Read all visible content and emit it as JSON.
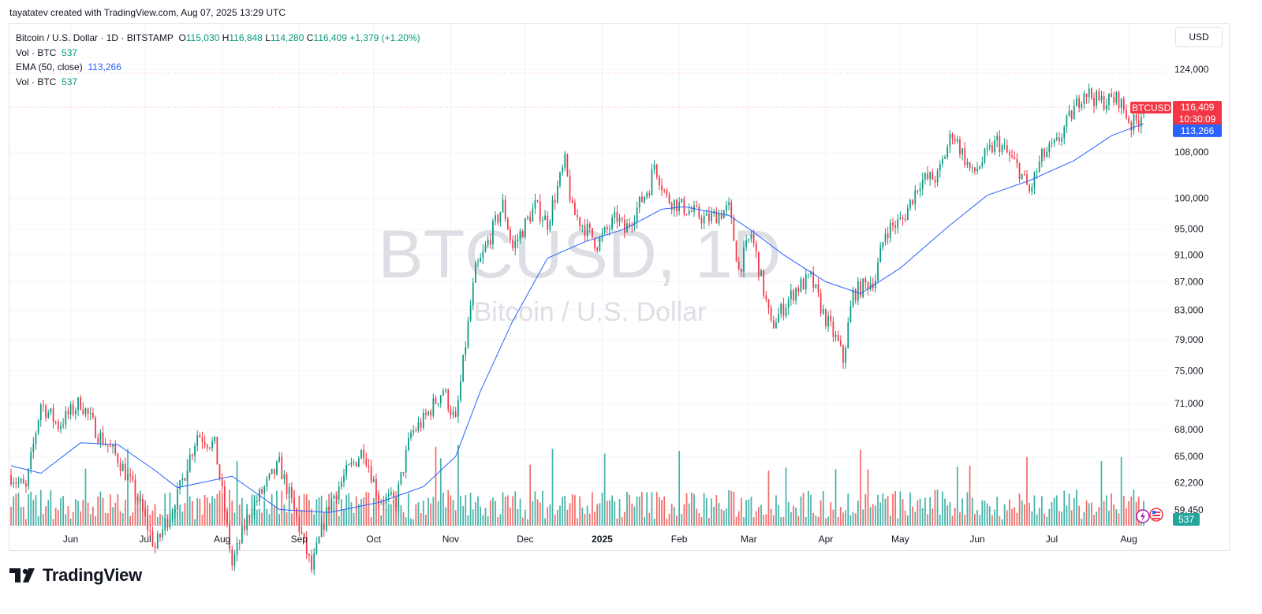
{
  "header": {
    "credit": "tayatatev created with TradingView.com, Aug 07, 2025 13:29 UTC"
  },
  "legend": {
    "symbol": "Bitcoin / U.S. Dollar · 1D · BITSTAMP",
    "open_label": "O",
    "open": "115,030",
    "high_label": "H",
    "high": "116,848",
    "low_label": "L",
    "low": "114,280",
    "close_label": "C",
    "close": "116,409",
    "change": "+1,379 (+1.20%)",
    "vol_label": "Vol · BTC",
    "vol": "537",
    "ema_label": "EMA (50, close)",
    "ema": "113,266",
    "vol2_label": "Vol · BTC",
    "vol2": "537"
  },
  "currency_button": "USD",
  "watermark": {
    "ticker": "BTCUSD, 1D",
    "name": "Bitcoin / U.S. Dollar"
  },
  "price_badges": {
    "symbol": "BTCUSD",
    "last_price": "116,409",
    "countdown": "10:30:09",
    "ema": "113,266",
    "volume": "537"
  },
  "branding": {
    "logo_text": "TradingView"
  },
  "colors": {
    "up": "#089981",
    "down": "#f23645",
    "ema": "#2962ff",
    "vol_up": "#26a69a",
    "vol_down": "#ef5350"
  },
  "chart_data": {
    "type": "candlestick",
    "symbol": "BTCUSD",
    "interval": "1D",
    "scale": "log",
    "y_ticks": [
      "124,000",
      "108,000",
      "100,000",
      "95,000",
      "91,000",
      "87,000",
      "83,000",
      "79,000",
      "75,000",
      "71,000",
      "68,000",
      "65,000",
      "62,200",
      "59,450"
    ],
    "y_tick_values": [
      124000,
      108000,
      100000,
      95000,
      91000,
      87000,
      83000,
      79000,
      75000,
      71000,
      68000,
      65000,
      62200,
      59450
    ],
    "x_ticks": [
      "Jun",
      "Jul",
      "Aug",
      "Sep",
      "Oct",
      "Nov",
      "Dec",
      "2025",
      "Feb",
      "Mar",
      "Apr",
      "May",
      "Jun",
      "Jul",
      "Aug"
    ],
    "x_tick_dates": [
      "2024-06-01",
      "2024-07-01",
      "2024-08-01",
      "2024-09-01",
      "2024-10-01",
      "2024-11-01",
      "2024-12-01",
      "2025-01-01",
      "2025-02-01",
      "2025-03-01",
      "2025-04-01",
      "2025-05-01",
      "2025-06-01",
      "2025-07-01",
      "2025-08-01"
    ],
    "date_range": [
      "2024-05-08",
      "2025-08-07"
    ],
    "close_path": [
      [
        "2024-05-08",
        63000
      ],
      [
        "2024-05-14",
        61500
      ],
      [
        "2024-05-20",
        71000
      ],
      [
        "2024-05-27",
        68500
      ],
      [
        "2024-06-05",
        71200
      ],
      [
        "2024-06-12",
        67500
      ],
      [
        "2024-06-20",
        64800
      ],
      [
        "2024-06-27",
        61200
      ],
      [
        "2024-07-05",
        55800
      ],
      [
        "2024-07-14",
        60800
      ],
      [
        "2024-07-22",
        67500
      ],
      [
        "2024-07-29",
        66200
      ],
      [
        "2024-08-05",
        54200
      ],
      [
        "2024-08-12",
        59200
      ],
      [
        "2024-08-24",
        64100
      ],
      [
        "2024-09-06",
        53800
      ],
      [
        "2024-09-13",
        60000
      ],
      [
        "2024-09-20",
        63200
      ],
      [
        "2024-09-27",
        65800
      ],
      [
        "2024-10-03",
        60600
      ],
      [
        "2024-10-10",
        60300
      ],
      [
        "2024-10-16",
        67500
      ],
      [
        "2024-10-21",
        69000
      ],
      [
        "2024-10-29",
        72700
      ],
      [
        "2024-11-03",
        68700
      ],
      [
        "2024-11-06",
        75900
      ],
      [
        "2024-11-11",
        88600
      ],
      [
        "2024-11-13",
        90000
      ],
      [
        "2024-11-22",
        98900
      ],
      [
        "2024-11-26",
        92000
      ],
      [
        "2024-12-05",
        98700
      ],
      [
        "2024-12-10",
        96000
      ],
      [
        "2024-12-17",
        106100
      ],
      [
        "2024-12-20",
        97800
      ],
      [
        "2024-12-30",
        92700
      ],
      [
        "2025-01-07",
        96900
      ],
      [
        "2025-01-10",
        94600
      ],
      [
        "2025-01-20",
        102000
      ],
      [
        "2025-01-22",
        106000
      ],
      [
        "2025-01-27",
        100000
      ],
      [
        "2025-02-03",
        98400
      ],
      [
        "2025-02-12",
        96500
      ],
      [
        "2025-02-21",
        98300
      ],
      [
        "2025-02-25",
        88700
      ],
      [
        "2025-03-02",
        94200
      ],
      [
        "2025-03-10",
        80700
      ],
      [
        "2025-03-20",
        86000
      ],
      [
        "2025-03-26",
        87500
      ],
      [
        "2025-03-31",
        82500
      ],
      [
        "2025-04-06",
        78400
      ],
      [
        "2025-04-08",
        76300
      ],
      [
        "2025-04-12",
        85300
      ],
      [
        "2025-04-21",
        87500
      ],
      [
        "2025-04-25",
        94700
      ],
      [
        "2025-05-02",
        96500
      ],
      [
        "2025-05-09",
        103000
      ],
      [
        "2025-05-16",
        103600
      ],
      [
        "2025-05-22",
        111700
      ],
      [
        "2025-05-30",
        104000
      ],
      [
        "2025-06-09",
        110000
      ],
      [
        "2025-06-18",
        104800
      ],
      [
        "2025-06-22",
        101000
      ],
      [
        "2025-06-27",
        107100
      ],
      [
        "2025-07-03",
        109500
      ],
      [
        "2025-07-10",
        116000
      ],
      [
        "2025-07-14",
        119800
      ],
      [
        "2025-07-20",
        117500
      ],
      [
        "2025-07-28",
        118000
      ],
      [
        "2025-08-02",
        113000
      ],
      [
        "2025-08-05",
        114100
      ],
      [
        "2025-08-07",
        116409
      ]
    ],
    "ema_path": [
      [
        "2024-05-08",
        64000
      ],
      [
        "2024-05-20",
        63200
      ],
      [
        "2024-06-05",
        66500
      ],
      [
        "2024-06-20",
        66300
      ],
      [
        "2024-07-05",
        63500
      ],
      [
        "2024-07-14",
        61700
      ],
      [
        "2024-08-05",
        62900
      ],
      [
        "2024-08-24",
        59500
      ],
      [
        "2024-09-13",
        59200
      ],
      [
        "2024-10-03",
        60200
      ],
      [
        "2024-10-21",
        61800
      ],
      [
        "2024-11-03",
        65000
      ],
      [
        "2024-11-13",
        72500
      ],
      [
        "2024-11-26",
        81500
      ],
      [
        "2024-12-10",
        90500
      ],
      [
        "2024-12-25",
        93000
      ],
      [
        "2025-01-10",
        95000
      ],
      [
        "2025-01-25",
        98200
      ],
      [
        "2025-02-03",
        98600
      ],
      [
        "2025-02-21",
        97200
      ],
      [
        "2025-03-02",
        94800
      ],
      [
        "2025-03-15",
        91000
      ],
      [
        "2025-04-01",
        87000
      ],
      [
        "2025-04-15",
        85300
      ],
      [
        "2025-05-01",
        89000
      ],
      [
        "2025-05-20",
        95300
      ],
      [
        "2025-06-05",
        100500
      ],
      [
        "2025-06-22",
        103000
      ],
      [
        "2025-07-10",
        106500
      ],
      [
        "2025-07-25",
        111000
      ],
      [
        "2025-08-07",
        113266
      ]
    ],
    "last_price": 116409,
    "ema_last": 113266,
    "volume_last": 537,
    "high_marker": 124000
  }
}
